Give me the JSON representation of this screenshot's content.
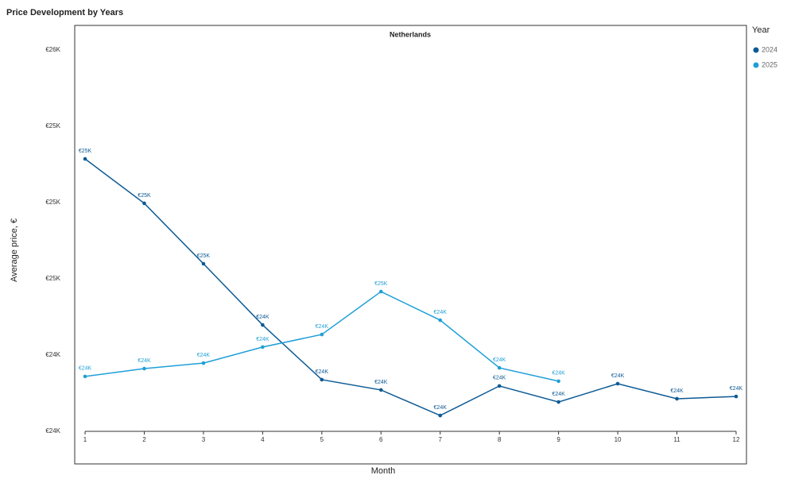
{
  "chart_data": {
    "type": "line",
    "title": "Price Development by Years",
    "subtitle": "Netherlands",
    "x_label": "Month",
    "y_label": "Average price, €",
    "legend_title": "Year",
    "x": [
      1,
      2,
      3,
      4,
      5,
      6,
      7,
      8,
      9,
      10,
      11,
      12
    ],
    "xlim": [
      0.825,
      12.175
    ],
    "xticks": [
      1,
      2,
      3,
      4,
      5,
      6,
      7,
      8,
      9,
      10,
      11,
      12
    ],
    "ylim": [
      23800,
      25929
    ],
    "yticks": [
      {
        "value": 23800,
        "label": "€24K"
      },
      {
        "value": 24200,
        "label": "€24K"
      },
      {
        "value": 24600,
        "label": "€25K"
      },
      {
        "value": 25000,
        "label": "€25K"
      },
      {
        "value": 25400,
        "label": "€25K"
      },
      {
        "value": 25800,
        "label": "€26K"
      }
    ],
    "series": [
      {
        "name": "2024",
        "color": "#0d5a94",
        "values": [
          25229,
          24996,
          24679,
          24358,
          24071,
          24017,
          23883,
          24038,
          23954,
          24050,
          23971,
          23983
        ],
        "value_labels": [
          "€25K",
          "€25K",
          "€25K",
          "€24K",
          "€24K",
          "€24K",
          "€24K",
          "€24K",
          "€24K",
          "€24K",
          "€24K",
          "€24K"
        ]
      },
      {
        "name": "2025",
        "color": "#1f9fd8",
        "values": [
          24088,
          24129,
          24158,
          24242,
          24308,
          24533,
          24383,
          24133,
          24063,
          null,
          null,
          null
        ],
        "value_labels": [
          "€24K",
          "€24K",
          "€24K",
          "€24K",
          "€24K",
          "€25K",
          "€24K",
          "€24K",
          "€24K",
          null,
          null,
          null
        ]
      }
    ]
  }
}
